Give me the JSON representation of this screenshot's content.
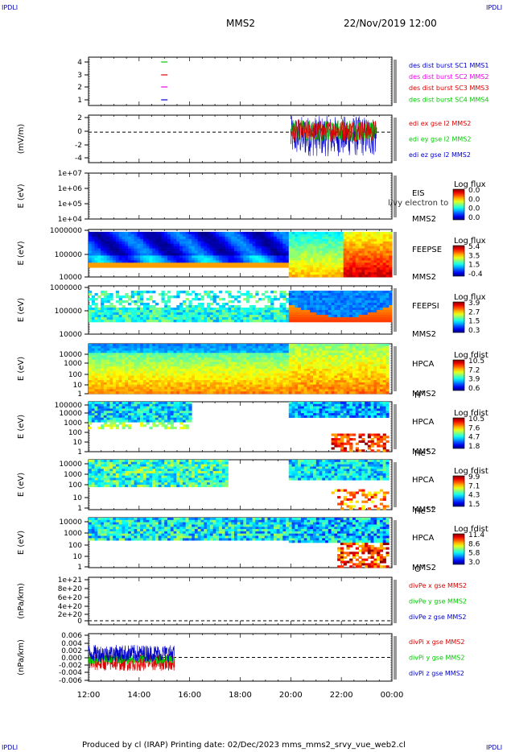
{
  "header": {
    "corner_left_top": "IPDLI",
    "corner_right_top": "IPDLI",
    "corner_left_bottom": "IPDLI",
    "corner_right_bottom": "IPDLI",
    "spacecraft": "MMS2",
    "datetime": "22/Nov/2019 12:00"
  },
  "footer": {
    "text": "Produced by cl (IRAP)   Printing date: 02/Dec/2023   mms_mms2_srvy_vue_web2.cl"
  },
  "colors": {
    "blue": "#0000cc",
    "magenta": "#ee00ee",
    "red": "#dd0000",
    "green": "#00cc00",
    "orange": "#ff8800"
  },
  "chart_data": {
    "type": "multi-panel time series",
    "x_ticks": [
      "12:00",
      "14:00",
      "16:00",
      "18:00",
      "20:00",
      "22:00",
      "00:00"
    ],
    "panels": [
      {
        "id": "burst",
        "ylabel": "",
        "yticks": [
          "4",
          "3",
          "2",
          "1"
        ],
        "legend": [
          {
            "text": "des dist burst SC1 MMS1",
            "color": "#0000cc"
          },
          {
            "text": "des dist burst SC2 MMS2",
            "color": "#ee00ee"
          },
          {
            "text": "des dist burst SC3 MMS3",
            "color": "#dd0000"
          },
          {
            "text": "des dist burst SC4 MMS4",
            "color": "#00cc00"
          }
        ],
        "markers": [
          {
            "sc": 4,
            "time_h": 15.0
          },
          {
            "sc": 3,
            "time_h": 15.0
          },
          {
            "sc": 2,
            "time_h": 15.0
          },
          {
            "sc": 1,
            "time_h": 15.0
          }
        ]
      },
      {
        "id": "edi",
        "ylabel": "(mV/m)",
        "yticks": [
          "2",
          "0",
          "-2",
          "-4"
        ],
        "ylim": [
          -4.5,
          2.5
        ],
        "legend": [
          {
            "text": "edi ex gse l2 MMS2",
            "color": "#dd0000"
          },
          {
            "text": "edi ey gse l2 MMS2",
            "color": "#00cc00"
          },
          {
            "text": "edi ez gse l2 MMS2",
            "color": "#0000cc"
          }
        ],
        "data_start_h": 20.0,
        "data_end_h": 23.4
      },
      {
        "id": "eis",
        "ylabel": "E (eV)",
        "yticks": [
          "1e+07",
          "1e+06",
          "1e+05",
          "1e+04"
        ],
        "label": "EIS",
        "overlay": "l/vy electron to",
        "sc": "MMS2",
        "cbar_title": "Log flux",
        "cbar_ticks": [
          "0.0",
          "0.0",
          "0.0",
          "0.0"
        ]
      },
      {
        "id": "feepse",
        "ylabel": "E (eV)",
        "yticks": [
          "1000000",
          "100000",
          "10000"
        ],
        "label": "FEEPSE",
        "sc": "MMS2",
        "cbar_title": "Log flux",
        "cbar_ticks": [
          "5.4",
          "3.5",
          "1.5",
          "-0.4"
        ]
      },
      {
        "id": "feepsi",
        "ylabel": "E (eV)",
        "yticks": [
          "1000000",
          "100000",
          "10000"
        ],
        "label": "FEEPSI",
        "sc": "MMS2",
        "cbar_title": "Log flux",
        "cbar_ticks": [
          "3.9",
          "2.7",
          "1.5",
          "0.3"
        ]
      },
      {
        "id": "hpca_h",
        "ylabel": "E (eV)",
        "yticks": [
          "10000",
          "1000",
          "100",
          "10",
          "1"
        ],
        "label": "HPCA",
        "sc": "MMS2",
        "species": "H+",
        "cbar_title": "Log fdist",
        "cbar_ticks": [
          "10.5",
          "7.2",
          "3.9",
          "0.6"
        ]
      },
      {
        "id": "hpca_he",
        "ylabel": "E (eV)",
        "yticks": [
          "100000",
          "10000",
          "1000",
          "100",
          "10",
          "1"
        ],
        "label": "HPCA",
        "sc": "MMS2",
        "species": "He+",
        "cbar_title": "Log fdist",
        "cbar_ticks": [
          "10.5",
          "7.6",
          "4.7",
          "1.8"
        ]
      },
      {
        "id": "hpca_he2",
        "ylabel": "E (eV)",
        "yticks": [
          "10000",
          "1000",
          "100",
          "10",
          "1"
        ],
        "label": "HPCA",
        "sc": "MMS2",
        "species": "He++",
        "cbar_title": "Log fdist",
        "cbar_ticks": [
          "9.9",
          "7.1",
          "4.3",
          "1.5"
        ]
      },
      {
        "id": "hpca_o",
        "ylabel": "E (eV)",
        "yticks": [
          "10000",
          "1000",
          "100",
          "10",
          "1"
        ],
        "label": "HPCA",
        "sc": "MMS2",
        "species": "O+",
        "cbar_title": "Log fdist",
        "cbar_ticks": [
          "11.4",
          "8.6",
          "5.8",
          "3.0"
        ]
      },
      {
        "id": "divpe",
        "ylabel": "(nPa/km)",
        "yticks": [
          "1e+21",
          "8e+20",
          "6e+20",
          "4e+20",
          "2e+20",
          "0"
        ],
        "legend": [
          {
            "text": "divPe x gse MMS2",
            "color": "#dd0000"
          },
          {
            "text": "divPe y gse MMS2",
            "color": "#00cc00"
          },
          {
            "text": "divPe z gse MMS2",
            "color": "#0000cc"
          }
        ]
      },
      {
        "id": "divpi",
        "ylabel": "(nPa/km)",
        "yticks": [
          "0.006",
          "0.004",
          "0.002",
          "0.000",
          "-0.002",
          "-0.004",
          "-0.006"
        ],
        "ylim": [
          -0.007,
          0.007
        ],
        "legend": [
          {
            "text": "divPi x gse MMS2",
            "color": "#dd0000"
          },
          {
            "text": "divPi y gse MMS2",
            "color": "#00cc00"
          },
          {
            "text": "divPi z gse MMS2",
            "color": "#0000cc"
          }
        ],
        "data_start_h": 12.0,
        "data_end_h": 15.4
      }
    ]
  }
}
